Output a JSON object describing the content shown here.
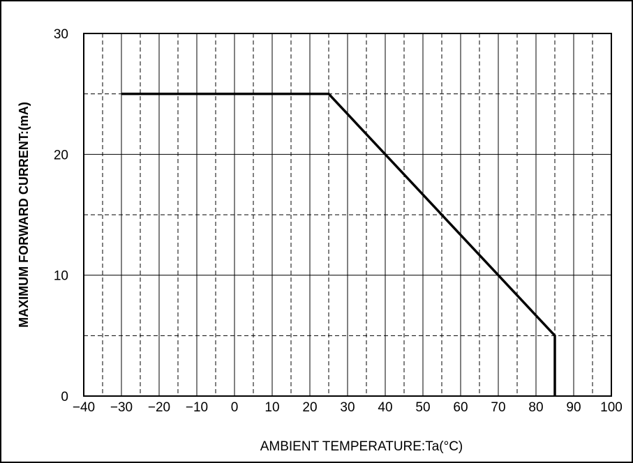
{
  "chart_data": {
    "type": "line",
    "title": "",
    "xlabel": "AMBIENT  TEMPERATURE:Ta(°C)",
    "ylabel": "MAXIMUM FORWARD CURRENT:(mA)",
    "xlim": [
      -40,
      100
    ],
    "ylim": [
      0,
      30
    ],
    "x_ticks": [
      -40,
      -30,
      -20,
      -10,
      0,
      10,
      20,
      30,
      40,
      50,
      60,
      70,
      80,
      90,
      100
    ],
    "x_tick_labels": [
      "−40",
      "−30",
      "−20",
      "−10",
      "0",
      "10",
      "20",
      "30",
      "40",
      "50",
      "60",
      "70",
      "80",
      "90",
      "100"
    ],
    "y_ticks": [
      0,
      10,
      20,
      30
    ],
    "y_tick_labels": [
      "0",
      "10",
      "20",
      "30"
    ],
    "grid": {
      "major_solid_x": [
        -30,
        -20,
        -10,
        0,
        10,
        20,
        30,
        40,
        50,
        60,
        70,
        80,
        90
      ],
      "minor_dashed_x": [
        -35,
        -25,
        -15,
        -5,
        5,
        15,
        25,
        35,
        45,
        55,
        65,
        75,
        85,
        95
      ],
      "major_solid_y": [
        10,
        20
      ],
      "minor_dashed_y": [
        5,
        15,
        25
      ]
    },
    "series": [
      {
        "x": [
          -30,
          25,
          85,
          85
        ],
        "y": [
          25,
          25,
          5,
          0
        ],
        "color": "#000000"
      }
    ]
  }
}
